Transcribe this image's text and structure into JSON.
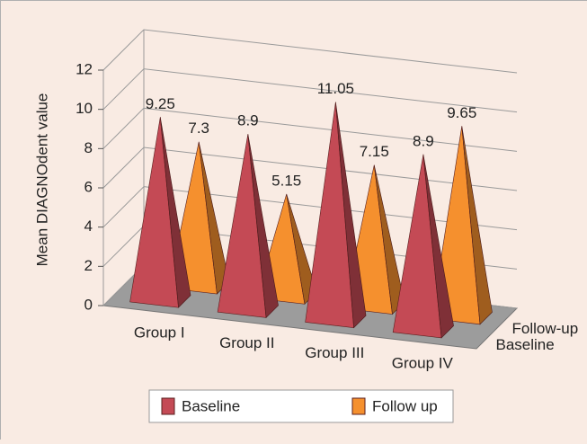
{
  "chart_data": {
    "type": "pyramid3d",
    "y_label": "Mean DIAGNOdent value",
    "categories": [
      "Group I",
      "Group II",
      "Group III",
      "Group IV"
    ],
    "depth_categories": [
      "Baseline",
      "Follow-up"
    ],
    "series": [
      {
        "name": "Baseline",
        "color": "#c44a55",
        "values": [
          9.25,
          8.9,
          11.05,
          8.9
        ]
      },
      {
        "name": "Follow up",
        "color": "#f5902e",
        "values": [
          7.3,
          5.15,
          7.15,
          9.65
        ]
      }
    ],
    "ylim": [
      0,
      12
    ],
    "yticks": [
      0,
      2,
      4,
      6,
      8,
      10,
      12
    ],
    "grid": true
  }
}
